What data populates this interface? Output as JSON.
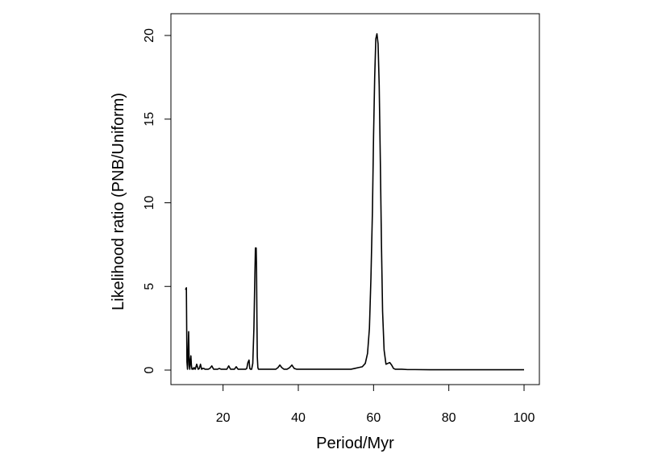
{
  "chart_data": {
    "type": "line",
    "title": "",
    "xlabel": "Period/Myr",
    "ylabel": "Likelihood ratio (PNB/Uniform)",
    "xlim": [
      10,
      100
    ],
    "ylim": [
      0,
      20.2
    ],
    "xticks": [
      20,
      40,
      60,
      80,
      100
    ],
    "yticks": [
      0,
      5,
      10,
      15,
      20
    ],
    "grid": false,
    "legend": "none",
    "line_color": "#000000",
    "series": [
      {
        "x": [
          10.0,
          10.25,
          10.4,
          10.55,
          10.7,
          10.85,
          11.0,
          11.15,
          11.3,
          11.45,
          11.6,
          11.75,
          11.9,
          12.1,
          12.3,
          12.6,
          13.0,
          13.4,
          13.7,
          14.0,
          14.3,
          14.6,
          14.9,
          15.2,
          15.5,
          16.0,
          16.5,
          17.0,
          17.5,
          18.0,
          18.5,
          19.0,
          19.5,
          20.0,
          20.5,
          21.0,
          21.5,
          22.0,
          22.5,
          23.0,
          23.5,
          24.0,
          24.5,
          25.0,
          25.5,
          26.0,
          26.3,
          26.6,
          26.9,
          27.1,
          27.3,
          27.6,
          27.9,
          28.2,
          28.4,
          28.6,
          28.8,
          28.9,
          29.0,
          29.1,
          29.25,
          29.4,
          29.6,
          29.8,
          30.1,
          30.5,
          31.0,
          32.0,
          33.0,
          34.0,
          34.6,
          35.1,
          35.6,
          36.2,
          37.0,
          37.7,
          38.3,
          38.9,
          39.6,
          40.5,
          42.0,
          44.0,
          46.0,
          48.0,
          50.0,
          52.0,
          54.0,
          55.0,
          56.0,
          57.0,
          57.8,
          58.4,
          58.9,
          59.3,
          59.7,
          60.0,
          60.3,
          60.6,
          60.9,
          61.2,
          61.5,
          61.8,
          62.1,
          62.4,
          62.8,
          63.3,
          63.8,
          64.3,
          64.8,
          65.3,
          65.8,
          66.5,
          67.5,
          69.0,
          71.0,
          75.0,
          80.0,
          85.0,
          90.0,
          95.0,
          100.0
        ],
        "values": [
          4.8,
          4.92,
          0.5,
          0.05,
          1.0,
          2.3,
          0.3,
          0.05,
          0.6,
          0.85,
          0.25,
          0.05,
          0.1,
          0.05,
          0.15,
          0.05,
          0.35,
          0.05,
          0.1,
          0.35,
          0.05,
          0.1,
          0.1,
          0.05,
          0.05,
          0.05,
          0.1,
          0.25,
          0.05,
          0.05,
          0.05,
          0.1,
          0.05,
          0.05,
          0.05,
          0.05,
          0.25,
          0.05,
          0.05,
          0.05,
          0.2,
          0.05,
          0.05,
          0.05,
          0.05,
          0.05,
          0.1,
          0.45,
          0.6,
          0.1,
          0.05,
          0.05,
          0.4,
          2.5,
          5.0,
          7.3,
          7.3,
          6.0,
          3.0,
          0.8,
          0.15,
          0.05,
          0.05,
          0.05,
          0.05,
          0.05,
          0.05,
          0.05,
          0.05,
          0.05,
          0.15,
          0.3,
          0.15,
          0.05,
          0.05,
          0.15,
          0.3,
          0.1,
          0.05,
          0.05,
          0.05,
          0.05,
          0.05,
          0.05,
          0.05,
          0.05,
          0.05,
          0.1,
          0.15,
          0.2,
          0.4,
          1.0,
          2.5,
          5.5,
          9.5,
          14.0,
          17.5,
          19.8,
          20.1,
          19.5,
          17.0,
          12.5,
          7.5,
          3.5,
          1.2,
          0.35,
          0.4,
          0.45,
          0.3,
          0.1,
          0.05,
          0.05,
          0.05,
          0.03,
          0.03,
          0.02,
          0.02,
          0.02,
          0.02,
          0.02,
          0.02
        ]
      }
    ]
  }
}
